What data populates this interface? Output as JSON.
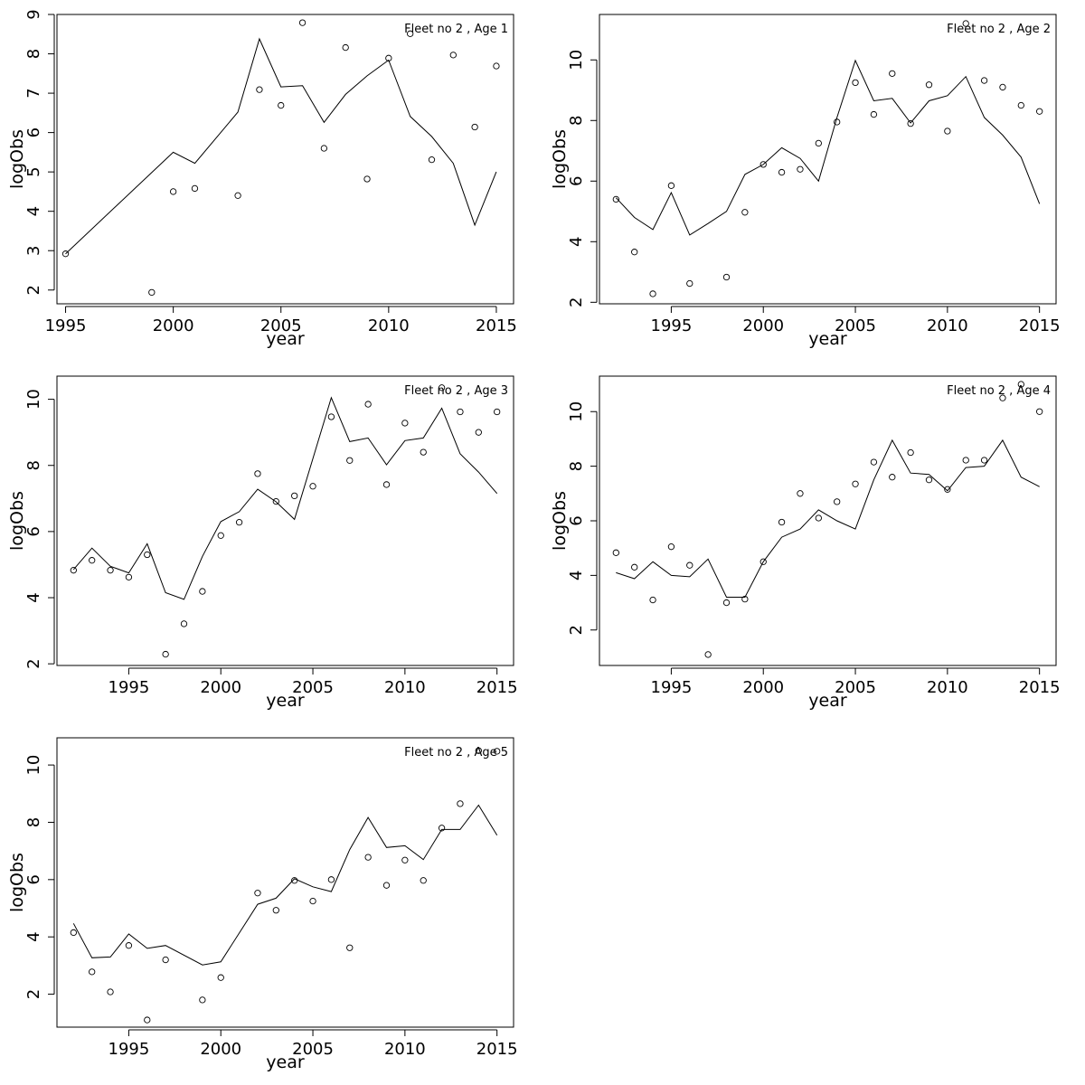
{
  "chart_data": [
    {
      "type": "line",
      "title": "Fleet no 2 , Age 1",
      "xlabel": "year",
      "ylabel": "logObs",
      "xlim": [
        1994.6,
        2015.8
      ],
      "ylim": [
        1.65,
        9.0
      ],
      "xticks": [
        1995,
        2000,
        2005,
        2010,
        2015
      ],
      "yticks": [
        2,
        3,
        4,
        5,
        6,
        7,
        8,
        9
      ],
      "grid": false,
      "series": [
        {
          "style": "line",
          "x": [
            1995,
            2000,
            2001,
            2003,
            2004,
            2005,
            2006,
            2007,
            2008,
            2009,
            2010,
            2011,
            2012,
            2013,
            2014,
            2015
          ],
          "values": [
            2.92,
            5.5,
            5.22,
            6.52,
            8.38,
            7.16,
            7.19,
            6.26,
            6.97,
            7.44,
            7.84,
            6.41,
            5.9,
            5.22,
            3.65,
            5.0
          ]
        },
        {
          "style": "points",
          "x": [
            1995,
            1999,
            2000,
            2001,
            2003,
            2004,
            2005,
            2006,
            2007,
            2008,
            2009,
            2010,
            2011,
            2012,
            2013,
            2014,
            2015
          ],
          "values": [
            2.92,
            1.94,
            4.5,
            4.58,
            4.4,
            7.09,
            6.69,
            8.79,
            5.6,
            8.16,
            4.82,
            7.89,
            8.51,
            5.31,
            7.97,
            6.14,
            7.69
          ]
        }
      ]
    },
    {
      "type": "line",
      "title": "Fleet no 2 , Age 2",
      "xlabel": "year",
      "ylabel": "logObs",
      "xlim": [
        1991.1,
        2015.9
      ],
      "ylim": [
        1.95,
        11.5
      ],
      "xticks": [
        1995,
        2000,
        2005,
        2010,
        2015
      ],
      "yticks": [
        2,
        4,
        6,
        8,
        10
      ],
      "grid": false,
      "series": [
        {
          "style": "line",
          "x": [
            1992,
            1993,
            1994,
            1995,
            1996,
            1997,
            1998,
            1999,
            2000,
            2001,
            2002,
            2003,
            2004,
            2005,
            2006,
            2007,
            2008,
            2009,
            2010,
            2011,
            2012,
            2013,
            2014,
            2015
          ],
          "values": [
            5.45,
            4.8,
            4.4,
            5.62,
            4.22,
            4.6,
            5.0,
            6.22,
            6.55,
            7.1,
            6.75,
            6.0,
            8.1,
            9.98,
            8.65,
            8.73,
            7.92,
            8.65,
            8.82,
            9.45,
            8.1,
            7.52,
            6.79,
            5.25
          ]
        },
        {
          "style": "points",
          "x": [
            1992,
            1993,
            1994,
            1995,
            1996,
            1998,
            1999,
            2000,
            2001,
            2002,
            2003,
            2004,
            2005,
            2006,
            2007,
            2008,
            2009,
            2010,
            2011,
            2012,
            2013,
            2014,
            2015
          ],
          "values": [
            5.4,
            3.66,
            2.28,
            5.85,
            2.62,
            2.83,
            4.97,
            6.55,
            6.29,
            6.39,
            7.25,
            7.95,
            9.25,
            8.2,
            9.55,
            7.9,
            9.18,
            7.65,
            11.2,
            9.32,
            9.1,
            8.5,
            8.3
          ]
        }
      ]
    },
    {
      "type": "line",
      "title": "Fleet no 2 , Age 3",
      "xlabel": "year",
      "ylabel": "logObs",
      "xlim": [
        1991.1,
        2015.9
      ],
      "ylim": [
        1.95,
        10.7
      ],
      "xticks": [
        1995,
        2000,
        2005,
        2010,
        2015
      ],
      "yticks": [
        2,
        4,
        6,
        8,
        10
      ],
      "grid": false,
      "series": [
        {
          "style": "line",
          "x": [
            1992,
            1993,
            1994,
            1995,
            1996,
            1997,
            1998,
            1999,
            2000,
            2001,
            2002,
            2003,
            2004,
            2005,
            2006,
            2007,
            2008,
            2009,
            2010,
            2011,
            2012,
            2013,
            2014,
            2015
          ],
          "values": [
            4.85,
            5.5,
            4.95,
            4.75,
            5.63,
            4.15,
            3.95,
            5.25,
            6.3,
            6.6,
            7.28,
            6.9,
            6.37,
            8.2,
            10.05,
            8.72,
            8.83,
            8.02,
            8.75,
            8.83,
            9.73,
            8.35,
            7.8,
            7.15
          ]
        },
        {
          "style": "points",
          "x": [
            1992,
            1993,
            1994,
            1995,
            1996,
            1997,
            1998,
            1999,
            2000,
            2001,
            2002,
            2003,
            2004,
            2005,
            2006,
            2007,
            2008,
            2009,
            2010,
            2011,
            2012,
            2013,
            2014,
            2015
          ],
          "values": [
            4.83,
            5.13,
            4.83,
            4.62,
            5.3,
            2.29,
            3.21,
            4.19,
            5.88,
            6.28,
            7.75,
            6.91,
            7.08,
            7.37,
            9.47,
            8.15,
            9.85,
            7.42,
            9.28,
            8.4,
            10.35,
            9.62,
            9.0,
            9.62
          ]
        }
      ]
    },
    {
      "type": "line",
      "title": "Fleet no 2 , Age 4",
      "xlabel": "year",
      "ylabel": "logObs",
      "xlim": [
        1991.1,
        2015.9
      ],
      "ylim": [
        0.7,
        11.3
      ],
      "xticks": [
        1995,
        2000,
        2005,
        2010,
        2015
      ],
      "yticks": [
        2,
        4,
        6,
        8,
        10
      ],
      "grid": false,
      "series": [
        {
          "style": "line",
          "x": [
            1992,
            1993,
            1994,
            1995,
            1996,
            1997,
            1998,
            1999,
            2000,
            2001,
            2002,
            2003,
            2004,
            2005,
            2006,
            2007,
            2008,
            2009,
            2010,
            2011,
            2012,
            2013,
            2014,
            2015
          ],
          "values": [
            4.1,
            3.88,
            4.5,
            4.0,
            3.95,
            4.6,
            3.2,
            3.2,
            4.5,
            5.4,
            5.7,
            6.4,
            6.0,
            5.7,
            7.5,
            8.95,
            7.75,
            7.7,
            7.1,
            7.95,
            8.0,
            8.95,
            7.6,
            7.25
          ]
        },
        {
          "style": "points",
          "x": [
            1992,
            1993,
            1994,
            1995,
            1996,
            1997,
            1998,
            1999,
            2000,
            2001,
            2002,
            2003,
            2004,
            2005,
            2006,
            2007,
            2008,
            2009,
            2010,
            2011,
            2012,
            2013,
            2014,
            2015
          ],
          "values": [
            4.83,
            4.3,
            3.1,
            5.05,
            4.37,
            1.1,
            3.0,
            3.13,
            4.5,
            5.95,
            7.0,
            6.1,
            6.7,
            7.35,
            8.15,
            7.6,
            8.5,
            7.5,
            7.15,
            8.22,
            8.22,
            10.5,
            11.0,
            10.0
          ]
        }
      ]
    },
    {
      "type": "line",
      "title": "Fleet no 2 , Age 5",
      "xlabel": "year",
      "ylabel": "logObs",
      "xlim": [
        1991.1,
        2015.9
      ],
      "ylim": [
        0.85,
        10.95
      ],
      "xticks": [
        1995,
        2000,
        2005,
        2010,
        2015
      ],
      "yticks": [
        2,
        4,
        6,
        8,
        10
      ],
      "grid": false,
      "series": [
        {
          "style": "line",
          "x": [
            1992,
            1993,
            1994,
            1995,
            1996,
            1997,
            1999,
            2000,
            2002,
            2003,
            2004,
            2005,
            2006,
            2007,
            2008,
            2009,
            2010,
            2011,
            2012,
            2013,
            2014,
            2015
          ],
          "values": [
            4.47,
            3.27,
            3.3,
            4.1,
            3.6,
            3.7,
            3.02,
            3.13,
            5.14,
            5.35,
            6.03,
            5.75,
            5.58,
            7.05,
            8.17,
            7.12,
            7.18,
            6.7,
            7.75,
            7.75,
            8.6,
            7.55
          ]
        },
        {
          "style": "points",
          "x": [
            1992,
            1993,
            1994,
            1995,
            1996,
            1997,
            1999,
            2000,
            2002,
            2003,
            2004,
            2005,
            2006,
            2007,
            2008,
            2009,
            2010,
            2011,
            2012,
            2013,
            2014,
            2015
          ],
          "values": [
            4.15,
            2.78,
            2.08,
            3.7,
            1.1,
            3.2,
            1.8,
            2.58,
            5.53,
            4.93,
            5.97,
            5.25,
            6.0,
            3.62,
            6.78,
            5.8,
            6.68,
            5.97,
            7.8,
            8.65,
            10.5,
            10.48
          ]
        }
      ]
    }
  ]
}
